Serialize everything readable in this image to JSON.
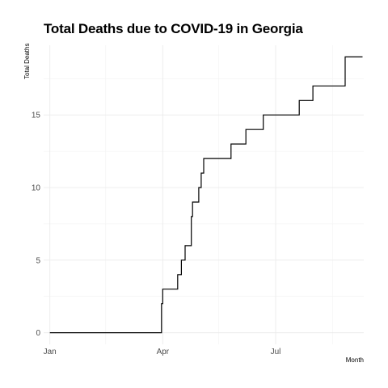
{
  "chart_data": {
    "type": "line",
    "title": "Total Deaths due to COVID-19 in Georgia",
    "xlabel": "Month",
    "ylabel": "Total Deaths",
    "x_tick_labels": [
      "Jan",
      "Apr",
      "Jul"
    ],
    "y_ticks": [
      0,
      5,
      10,
      15
    ],
    "ylim": [
      -0.8,
      19.8
    ],
    "xlim": [
      "2019-12-27",
      "2020-09-10"
    ],
    "grid": true,
    "line_color": "#000000",
    "series": [
      {
        "values": [
          {
            "x": "2020-01-01",
            "y": 0
          },
          {
            "x": "2020-03-30",
            "y": 0
          },
          {
            "x": "2020-03-31",
            "y": 2
          },
          {
            "x": "2020-04-01",
            "y": 3
          },
          {
            "x": "2020-04-13",
            "y": 4
          },
          {
            "x": "2020-04-16",
            "y": 5
          },
          {
            "x": "2020-04-19",
            "y": 6
          },
          {
            "x": "2020-04-24",
            "y": 8
          },
          {
            "x": "2020-04-25",
            "y": 9
          },
          {
            "x": "2020-04-30",
            "y": 10
          },
          {
            "x": "2020-05-02",
            "y": 11
          },
          {
            "x": "2020-05-04",
            "y": 12
          },
          {
            "x": "2020-05-26",
            "y": 13
          },
          {
            "x": "2020-06-07",
            "y": 14
          },
          {
            "x": "2020-06-21",
            "y": 15
          },
          {
            "x": "2020-07-20",
            "y": 16
          },
          {
            "x": "2020-07-31",
            "y": 17
          },
          {
            "x": "2020-08-26",
            "y": 19
          },
          {
            "x": "2020-09-09",
            "y": 19
          }
        ]
      }
    ]
  }
}
